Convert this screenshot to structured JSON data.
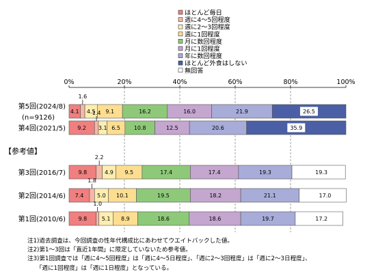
{
  "chart_data": {
    "type": "bar",
    "stacked": true,
    "orientation": "horizontal",
    "xlim": [
      0,
      100
    ],
    "x_ticks": [
      "0%",
      "20%",
      "40%",
      "60%",
      "80%",
      "100%"
    ],
    "grid": true,
    "legend_position": "top-right",
    "legend": [
      {
        "name": "ほとんど毎日",
        "color": "#f07f7f"
      },
      {
        "name": "週に4～5回程度",
        "color": "#f7b7a7"
      },
      {
        "name": "週に2～3回程度",
        "color": "#fdeeb0"
      },
      {
        "name": "週に1回程度",
        "color": "#fdde91"
      },
      {
        "name": "月に数回程度",
        "color": "#8ec97a"
      },
      {
        "name": "月に1回程度",
        "color": "#c4a6cf"
      },
      {
        "name": "年に数回程度",
        "color": "#a8acd8"
      },
      {
        "name": "ほとんど外食はしない",
        "color": "#4a5fa5"
      },
      {
        "name": "無回答",
        "color": "#ffffff"
      }
    ],
    "group_label": "【参考値】",
    "rows": [
      {
        "label": "第5回(2024/8)",
        "sublabel": "(n=9126)",
        "values": [
          4.1,
          1.6,
          4.5,
          9.1,
          16.2,
          16.0,
          21.9,
          26.5,
          0.1
        ],
        "labels": [
          "4.1",
          "1.6",
          "4.5",
          "9.1",
          "16.2",
          "16.0",
          "21.9",
          "26.5",
          ""
        ]
      },
      {
        "label": "第4回(2021/5)",
        "sublabel": "",
        "values": [
          9.2,
          1.4,
          3.1,
          6.5,
          10.8,
          12.5,
          20.6,
          35.9,
          0.0
        ],
        "labels": [
          "9.2",
          "1.4",
          "3.1",
          "6.5",
          "10.8",
          "12.5",
          "20.6",
          "35.9",
          ""
        ]
      },
      {
        "label": "第3回(2016/7)",
        "sublabel": "",
        "values": [
          9.8,
          2.2,
          4.9,
          9.5,
          17.4,
          17.4,
          19.3,
          0.0,
          19.3
        ],
        "labels": [
          "9.8",
          "2.2",
          "4.9",
          "9.5",
          "17.4",
          "17.4",
          "19.3",
          "",
          "19.3"
        ]
      },
      {
        "label": "第2回(2014/6)",
        "sublabel": "",
        "values": [
          7.4,
          1.8,
          5.0,
          10.1,
          19.5,
          18.2,
          21.1,
          0.0,
          17.0
        ],
        "labels": [
          "7.4",
          "1.8",
          "5.0",
          "10.1",
          "19.5",
          "18.2",
          "21.1",
          "",
          "17.0"
        ]
      },
      {
        "label": "第1回(2010/6)",
        "sublabel": "",
        "values": [
          9.8,
          1.0,
          5.1,
          8.9,
          18.6,
          18.6,
          19.7,
          0.0,
          17.2
        ],
        "labels": [
          "9.8",
          "1.0",
          "5.1",
          "8.9",
          "18.6",
          "18.6",
          "19.7",
          "",
          "17.2"
        ]
      }
    ]
  },
  "notes": [
    "注1)過去調査は、今回調査の性年代構成比にあわせてウエイトバックした値。",
    "注2)第1～3回は「直近1年間」に限定していないため参考値。",
    "注3)第1回調査では「週に4～5回程度」は「週に4～5日程度」、「週に2～3回程度」は「週に2～3日程度」、",
    "　　「週に1回程度」は「週に1日程度」となっている。"
  ]
}
